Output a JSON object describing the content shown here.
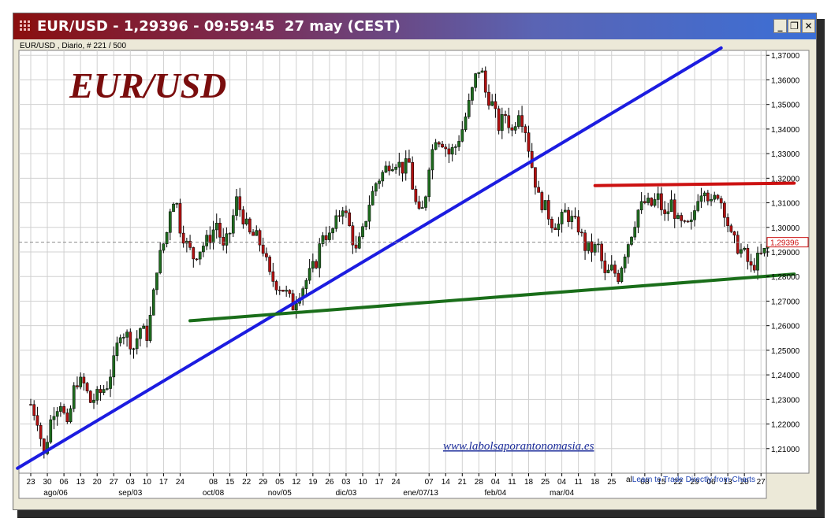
{
  "window": {
    "title": "EUR/USD - 1,29396 - 09:59:45  27 may (CEST)",
    "buttons": {
      "minimize": "_",
      "restore": "❐",
      "close": "✕"
    }
  },
  "chart_info": "EUR/USD , Diario, # 221 / 500",
  "watermark": {
    "logo": "EUR/USD",
    "url": "www.labolsaporantonomasia.es"
  },
  "credit": {
    "prefix": "al",
    "text": "Learn to Trade Directly from Charts"
  },
  "colors": {
    "up_candle": "#1e6b1e",
    "down_candle": "#b01010",
    "blue_line": "#1c1ce0",
    "red_line": "#cc1111",
    "green_line": "#1a6e1a",
    "logo": "#7a0d0d",
    "grid": "#d0d0d0"
  },
  "chart_data": {
    "type": "candlestick",
    "title": "EUR/USD",
    "ylim": [
      1.2,
      1.372
    ],
    "grid": true,
    "current_price": 1.29396,
    "current_price_label": "1,29396",
    "y_ticks": [
      {
        "value": 1.21,
        "label": "1,21000"
      },
      {
        "value": 1.22,
        "label": "1,22000"
      },
      {
        "value": 1.23,
        "label": "1,23000"
      },
      {
        "value": 1.24,
        "label": "1,24000"
      },
      {
        "value": 1.25,
        "label": "1,25000"
      },
      {
        "value": 1.26,
        "label": "1,26000"
      },
      {
        "value": 1.27,
        "label": "1,27000"
      },
      {
        "value": 1.28,
        "label": "1,28000"
      },
      {
        "value": 1.29,
        "label": "1,29000"
      },
      {
        "value": 1.3,
        "label": "1,30000"
      },
      {
        "value": 1.31,
        "label": "1,31000"
      },
      {
        "value": 1.32,
        "label": "1,32000"
      },
      {
        "value": 1.33,
        "label": "1,33000"
      },
      {
        "value": 1.34,
        "label": "1,34000"
      },
      {
        "value": 1.35,
        "label": "1,35000"
      },
      {
        "value": 1.36,
        "label": "1,36000"
      },
      {
        "value": 1.37,
        "label": "1,37000"
      }
    ],
    "x_day_labels": [
      "23",
      "30",
      "06",
      "13",
      "20",
      "27",
      "03",
      "10",
      "17",
      "24",
      "08",
      "15",
      "22",
      "29",
      "05",
      "12",
      "19",
      "26",
      "03",
      "10",
      "17",
      "24",
      "07",
      "14",
      "21",
      "28",
      "04",
      "11",
      "18",
      "25",
      "04",
      "11",
      "18",
      "25",
      "08",
      "15",
      "22",
      "29",
      "06",
      "13",
      "20",
      "27"
    ],
    "x_day_slots": [
      0,
      1,
      2,
      3,
      4,
      5,
      6,
      7,
      8,
      9,
      11,
      12,
      13,
      14,
      15,
      16,
      17,
      18,
      19,
      20,
      21,
      22,
      24,
      25,
      26,
      27,
      28,
      29,
      30,
      31,
      32,
      33,
      34,
      35,
      37,
      38,
      39,
      40,
      41,
      42,
      43,
      44
    ],
    "x_month_labels": [
      {
        "label": "ago/06",
        "slot": 1.5
      },
      {
        "label": "sep/03",
        "slot": 6.0
      },
      {
        "label": "oct/08",
        "slot": 11.0
      },
      {
        "label": "nov/05",
        "slot": 15.0
      },
      {
        "label": "dic/03",
        "slot": 19.0
      },
      {
        "label": "ene/07/13",
        "slot": 23.5
      },
      {
        "label": "feb/04",
        "slot": 28.0
      },
      {
        "label": "mar/04",
        "slot": 32.0
      }
    ],
    "price_path": [
      [
        0,
        1.228
      ],
      [
        0.4,
        1.222
      ],
      [
        0.8,
        1.207
      ],
      [
        1.3,
        1.225
      ],
      [
        1.8,
        1.229
      ],
      [
        2.2,
        1.218
      ],
      [
        2.7,
        1.238
      ],
      [
        3.2,
        1.236
      ],
      [
        3.6,
        1.229
      ],
      [
        4.1,
        1.232
      ],
      [
        4.6,
        1.236
      ],
      [
        5.0,
        1.245
      ],
      [
        5.4,
        1.258
      ],
      [
        5.8,
        1.256
      ],
      [
        6.2,
        1.251
      ],
      [
        6.6,
        1.259
      ],
      [
        7.0,
        1.256
      ],
      [
        7.3,
        1.267
      ],
      [
        7.6,
        1.284
      ],
      [
        7.9,
        1.291
      ],
      [
        8.2,
        1.298
      ],
      [
        8.5,
        1.313
      ],
      [
        8.8,
        1.309
      ],
      [
        9.0,
        1.3
      ],
      [
        9.4,
        1.293
      ],
      [
        9.8,
        1.288
      ],
      [
        10.3,
        1.292
      ],
      [
        10.8,
        1.296
      ],
      [
        11.2,
        1.302
      ],
      [
        11.6,
        1.291
      ],
      [
        12.0,
        1.298
      ],
      [
        12.4,
        1.311
      ],
      [
        12.8,
        1.304
      ],
      [
        13.2,
        1.297
      ],
      [
        13.6,
        1.296
      ],
      [
        14.0,
        1.291
      ],
      [
        14.4,
        1.28
      ],
      [
        14.8,
        1.277
      ],
      [
        15.2,
        1.275
      ],
      [
        15.5,
        1.272
      ],
      [
        15.8,
        1.268
      ],
      [
        16.1,
        1.273
      ],
      [
        16.4,
        1.276
      ],
      [
        16.8,
        1.281
      ],
      [
        17.2,
        1.286
      ],
      [
        17.6,
        1.298
      ],
      [
        18.0,
        1.296
      ],
      [
        18.4,
        1.302
      ],
      [
        18.8,
        1.309
      ],
      [
        19.2,
        1.3
      ],
      [
        19.6,
        1.29
      ],
      [
        20.0,
        1.298
      ],
      [
        20.4,
        1.31
      ],
      [
        20.8,
        1.318
      ],
      [
        21.2,
        1.322
      ],
      [
        21.6,
        1.326
      ],
      [
        22.0,
        1.327
      ],
      [
        22.4,
        1.324
      ],
      [
        22.8,
        1.326
      ],
      [
        23.1,
        1.312
      ],
      [
        23.4,
        1.305
      ],
      [
        23.7,
        1.308
      ],
      [
        24.0,
        1.326
      ],
      [
        24.4,
        1.337
      ],
      [
        24.8,
        1.335
      ],
      [
        25.2,
        1.33
      ],
      [
        25.6,
        1.333
      ],
      [
        26.0,
        1.34
      ],
      [
        26.4,
        1.35
      ],
      [
        26.8,
        1.361
      ],
      [
        27.1,
        1.366
      ],
      [
        27.4,
        1.355
      ],
      [
        27.8,
        1.35
      ],
      [
        28.2,
        1.341
      ],
      [
        28.6,
        1.346
      ],
      [
        29.0,
        1.339
      ],
      [
        29.4,
        1.348
      ],
      [
        29.8,
        1.34
      ],
      [
        30.2,
        1.325
      ],
      [
        30.6,
        1.312
      ],
      [
        31.0,
        1.308
      ],
      [
        31.4,
        1.302
      ],
      [
        31.8,
        1.301
      ],
      [
        32.2,
        1.306
      ],
      [
        32.6,
        1.303
      ],
      [
        33.0,
        1.3
      ],
      [
        33.4,
        1.292
      ],
      [
        33.8,
        1.291
      ],
      [
        34.2,
        1.292
      ],
      [
        34.6,
        1.28
      ],
      [
        35.0,
        1.283
      ],
      [
        35.4,
        1.28
      ],
      [
        35.8,
        1.29
      ],
      [
        36.2,
        1.298
      ],
      [
        36.6,
        1.307
      ],
      [
        37.0,
        1.31
      ],
      [
        37.4,
        1.309
      ],
      [
        37.8,
        1.312
      ],
      [
        38.2,
        1.304
      ],
      [
        38.6,
        1.31
      ],
      [
        39.0,
        1.302
      ],
      [
        39.4,
        1.3
      ],
      [
        39.8,
        1.301
      ],
      [
        40.2,
        1.313
      ],
      [
        40.6,
        1.317
      ],
      [
        41.0,
        1.309
      ],
      [
        41.4,
        1.314
      ],
      [
        41.8,
        1.307
      ],
      [
        42.2,
        1.296
      ],
      [
        42.6,
        1.292
      ],
      [
        43.0,
        1.289
      ],
      [
        43.4,
        1.283
      ],
      [
        43.8,
        1.287
      ],
      [
        44.2,
        1.29
      ],
      [
        44.6,
        1.294
      ]
    ],
    "trendlines": [
      {
        "color_key": "blue_line",
        "from": [
          -0.8,
          1.202
        ],
        "to": [
          41.6,
          1.373
        ]
      },
      {
        "color_key": "green_line",
        "from": [
          9.6,
          1.262
        ],
        "to": [
          46.0,
          1.281
        ]
      },
      {
        "color_key": "red_line",
        "from": [
          34.0,
          1.317
        ],
        "to": [
          46.0,
          1.318
        ]
      }
    ]
  }
}
